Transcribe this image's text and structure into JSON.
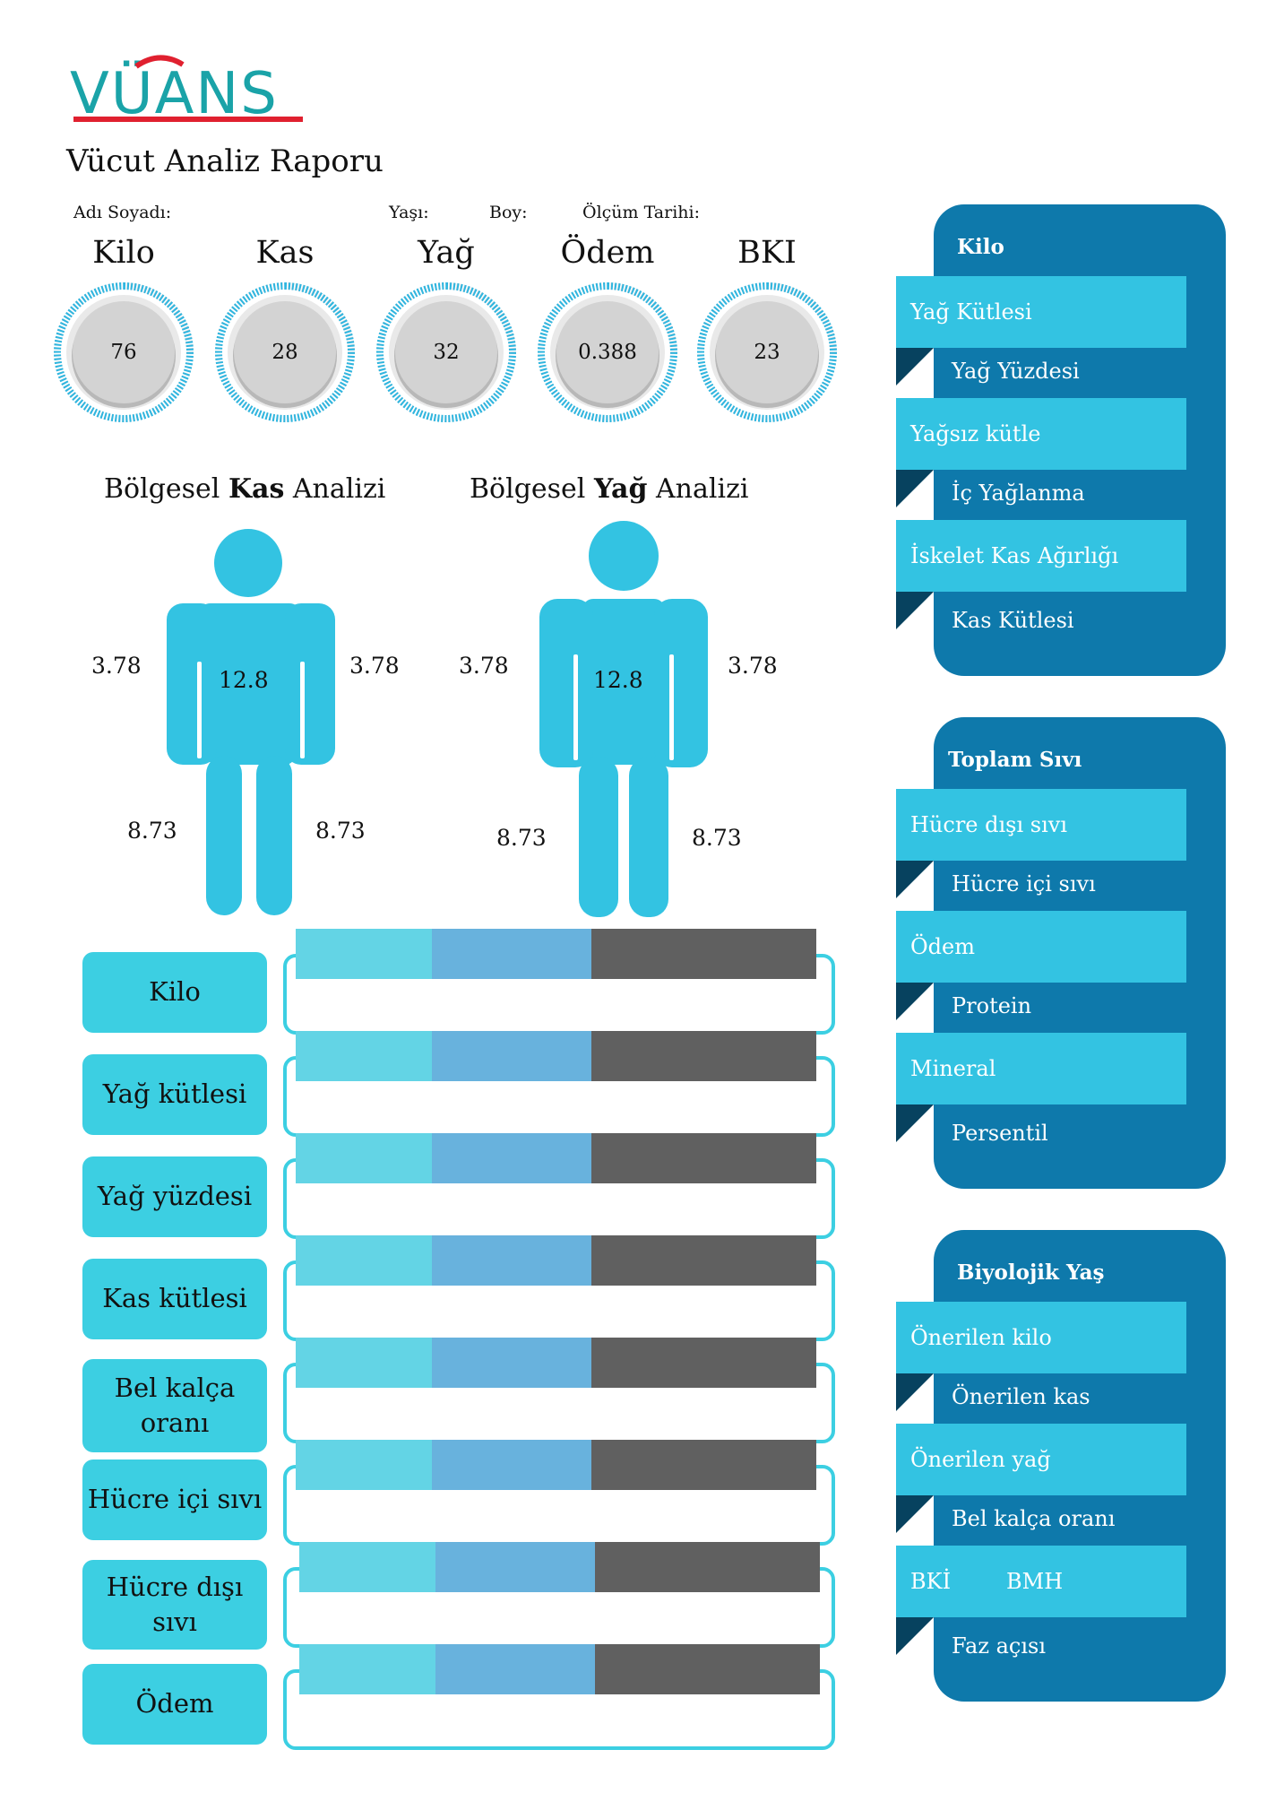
{
  "header": {
    "logo_text": "VÜANS",
    "report_title": "Vücut Analiz Raporu",
    "name_label": "Adı Soyadı:",
    "age_label": "Yaşı:",
    "height_label": "Boy:",
    "date_label": "Ölçüm Tarihi:"
  },
  "gauges": [
    {
      "title": "Kilo",
      "value": "76"
    },
    {
      "title": "Kas",
      "value": "28"
    },
    {
      "title": "Yağ",
      "value": "32"
    },
    {
      "title": "Ödem",
      "value": "0.388"
    },
    {
      "title": "BKI",
      "value": "23"
    }
  ],
  "regional": {
    "muscle": {
      "prefix": "Bölgesel ",
      "bold": "Kas",
      "suffix": " Analizi",
      "left_arm": "3.78",
      "right_arm": "3.78",
      "trunk": "12.8",
      "left_leg": "8.73",
      "right_leg": "8.73"
    },
    "fat": {
      "prefix": "Bölgesel ",
      "bold": "Yağ",
      "suffix": " Analizi",
      "left_arm": "3.78",
      "right_arm": "3.78",
      "trunk": "12.8",
      "left_leg": "8.73",
      "right_leg": "8.73"
    }
  },
  "bars": [
    {
      "label": "Kilo"
    },
    {
      "label": "Yağ kütlesi"
    },
    {
      "label": "Yağ yüzdesi"
    },
    {
      "label": "Kas kütlesi"
    },
    {
      "label": "Bel kalça oranı"
    },
    {
      "label": "Hücre içi sıvı"
    },
    {
      "label": "Hücre dışı sıvı"
    },
    {
      "label": "Ödem"
    }
  ],
  "panels": [
    {
      "title": "Kilo",
      "items": [
        {
          "ribbon": "Yağ Kütlesi",
          "sub": "Yağ Yüzdesi"
        },
        {
          "ribbon": "Yağsız kütle",
          "sub": "İç Yağlanma"
        },
        {
          "ribbon": "İskelet Kas Ağırlığı",
          "sub": "Kas Kütlesi"
        }
      ]
    },
    {
      "title": "Toplam Sıvı",
      "items": [
        {
          "ribbon": "Hücre dışı sıvı",
          "sub": "Hücre içi sıvı"
        },
        {
          "ribbon": "Ödem",
          "sub": "Protein"
        },
        {
          "ribbon": "Mineral",
          "sub": "Persentil"
        }
      ]
    },
    {
      "title": "Biyolojik Yaş",
      "items": [
        {
          "ribbon": "Önerilen kilo",
          "sub": "Önerilen kas"
        },
        {
          "ribbon": "Önerilen yağ",
          "sub": "Bel kalça oranı"
        },
        {
          "ribbon": "BKİ",
          "ribbon2": "BMH",
          "sub": "Faz açısı"
        }
      ]
    }
  ],
  "colors": {
    "accent": "#33c3e2",
    "panel": "#0e79ab",
    "brand_red": "#e0202f",
    "brand_teal": "#1aa3a8"
  }
}
